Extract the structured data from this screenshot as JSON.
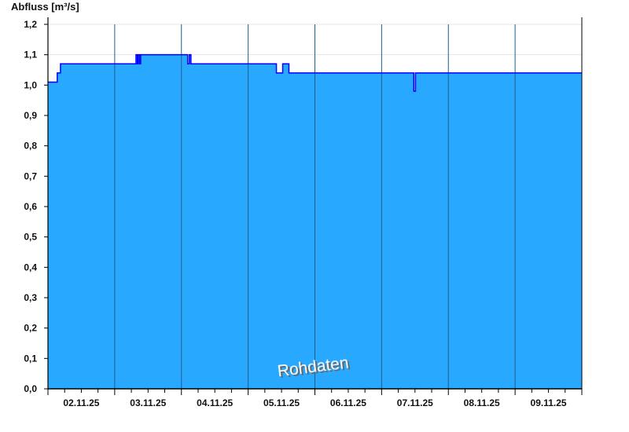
{
  "chart_data": {
    "type": "area",
    "title": "Abfluss [m³/s]",
    "ylabel": "Abfluss [m³/s]",
    "xlabel": "",
    "ylim": [
      0,
      1.2
    ],
    "yticks": [
      "0,0",
      "0,1",
      "0,2",
      "0,3",
      "0,4",
      "0,5",
      "0,6",
      "0,7",
      "0,8",
      "0,9",
      "1,0",
      "1,1",
      "1,2"
    ],
    "xlim": [
      "02.11 00:00",
      "10.11 00:00"
    ],
    "xticks": [
      "02.11.25",
      "03.11.25",
      "04.11.25",
      "05.11.25",
      "06.11.25",
      "07.11.25",
      "08.11.25",
      "09.11.25"
    ],
    "grid": true,
    "watermark": "Rohdaten",
    "colors": {
      "fill": "#29a8ff",
      "line": "#0000ff",
      "day_lines": "#1f5f8a"
    },
    "series": [
      {
        "points": [
          [
            "02.11 00:00",
            1.01
          ],
          [
            "02.11 03:20",
            1.04
          ],
          [
            "02.11 04:30",
            1.07
          ],
          [
            "03.11 07:40",
            1.1
          ],
          [
            "03.11 08:10",
            1.07
          ],
          [
            "03.11 08:30",
            1.1
          ],
          [
            "03.11 09:00",
            1.07
          ],
          [
            "03.11 09:20",
            1.1
          ],
          [
            "04.11 02:15",
            1.07
          ],
          [
            "04.11 02:50",
            1.1
          ],
          [
            "04.11 03:25",
            1.07
          ],
          [
            "05.11 10:10",
            1.04
          ],
          [
            "05.11 12:25",
            1.07
          ],
          [
            "05.11 14:40",
            1.04
          ],
          [
            "07.11 11:35",
            0.98
          ],
          [
            "07.11 12:10",
            1.04
          ],
          [
            "10.11 00:00",
            1.04
          ]
        ]
      }
    ]
  }
}
